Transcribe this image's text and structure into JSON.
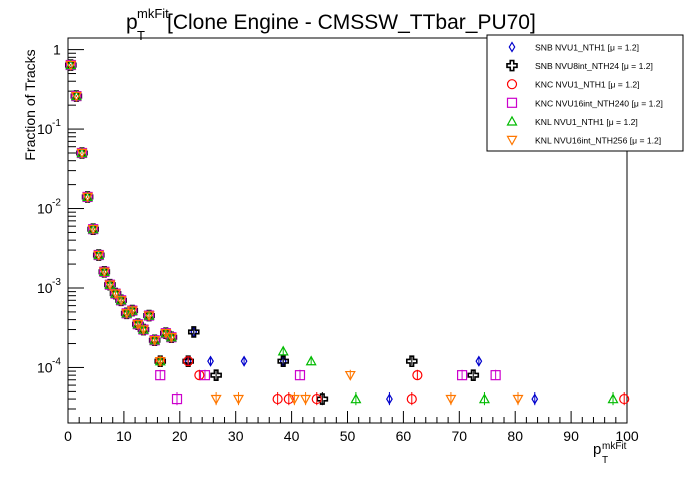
{
  "chart_data": {
    "type": "scatter",
    "title": {
      "main": "p",
      "main_sup": "mkFit",
      "main_sub": "T",
      "rest": " [Clone Engine - CMSSW_TTbar_PU70]"
    },
    "xlabel": {
      "main": "p",
      "sup": "mkFit",
      "sub": "T"
    },
    "ylabel": "Fraction of Tracks",
    "x_scale": "linear",
    "y_scale": "log",
    "xlim": [
      0,
      100
    ],
    "ylim": [
      2e-05,
      1.4
    ],
    "x_ticks": [
      {
        "v": 0,
        "label": "0"
      },
      {
        "v": 10,
        "label": "10"
      },
      {
        "v": 20,
        "label": "20"
      },
      {
        "v": 30,
        "label": "30"
      },
      {
        "v": 40,
        "label": "40"
      },
      {
        "v": 50,
        "label": "50"
      },
      {
        "v": 60,
        "label": "60"
      },
      {
        "v": 70,
        "label": "70"
      },
      {
        "v": 80,
        "label": "80"
      },
      {
        "v": 90,
        "label": "90"
      },
      {
        "v": 100,
        "label": "100"
      }
    ],
    "y_ticks": [
      {
        "v": 0.0001,
        "base": "10",
        "exp": "-4"
      },
      {
        "v": 0.001,
        "base": "10",
        "exp": "-3"
      },
      {
        "v": 0.01,
        "base": "10",
        "exp": "-2"
      },
      {
        "v": 0.1,
        "base": "10",
        "exp": "-1"
      },
      {
        "v": 1,
        "base": "1",
        "exp": ""
      }
    ],
    "grid": false,
    "legend_position": "top-right",
    "series": [
      {
        "name": "SNB NVU1_NTH1 [μ = 1.2]",
        "marker": "diamond",
        "color": "#0000cc",
        "points": [
          [
            0.5,
            0.64
          ],
          [
            1.5,
            0.26
          ],
          [
            2.5,
            0.05
          ],
          [
            3.5,
            0.014
          ],
          [
            4.5,
            0.0055
          ],
          [
            5.5,
            0.0026
          ],
          [
            6.5,
            0.0016
          ],
          [
            7.5,
            0.0011
          ],
          [
            8.5,
            0.00085
          ],
          [
            9.5,
            0.0007
          ],
          [
            10.5,
            0.00048
          ],
          [
            11.5,
            0.00052
          ],
          [
            12.5,
            0.00035
          ],
          [
            13.5,
            0.0003
          ],
          [
            14.5,
            0.00045
          ],
          [
            15.5,
            0.00022
          ],
          [
            16.5,
            0.00012
          ],
          [
            17.5,
            0.00027
          ],
          [
            18.5,
            0.00024
          ],
          [
            21.5,
            0.00012
          ],
          [
            22.5,
            0.00028
          ],
          [
            25.5,
            0.00012
          ],
          [
            31.5,
            0.00012
          ],
          [
            38.5,
            0.00012
          ],
          [
            57.5,
            4e-05
          ],
          [
            73.5,
            0.00012
          ],
          [
            83.5,
            4e-05
          ]
        ]
      },
      {
        "name": "SNB NVU8int_NTH24 [μ = 1.2]",
        "marker": "cross",
        "color": "#000000",
        "points": [
          [
            0.5,
            0.64
          ],
          [
            1.5,
            0.26
          ],
          [
            2.5,
            0.05
          ],
          [
            3.5,
            0.014
          ],
          [
            4.5,
            0.0055
          ],
          [
            5.5,
            0.0026
          ],
          [
            6.5,
            0.0016
          ],
          [
            7.5,
            0.0011
          ],
          [
            8.5,
            0.00085
          ],
          [
            9.5,
            0.0007
          ],
          [
            10.5,
            0.00048
          ],
          [
            11.5,
            0.00052
          ],
          [
            12.5,
            0.00035
          ],
          [
            13.5,
            0.0003
          ],
          [
            14.5,
            0.00045
          ],
          [
            15.5,
            0.00022
          ],
          [
            16.5,
            0.00012
          ],
          [
            17.5,
            0.00027
          ],
          [
            18.5,
            0.00024
          ],
          [
            21.5,
            0.00012
          ],
          [
            22.5,
            0.00028
          ],
          [
            26.5,
            8e-05
          ],
          [
            38.5,
            0.00012
          ],
          [
            45.5,
            4e-05
          ],
          [
            61.5,
            0.00012
          ],
          [
            72.5,
            8e-05
          ]
        ]
      },
      {
        "name": "KNC NVU1_NTH1 [μ = 1.2]",
        "marker": "circle",
        "color": "#ff0000",
        "points": [
          [
            0.5,
            0.64
          ],
          [
            1.5,
            0.26
          ],
          [
            2.5,
            0.05
          ],
          [
            3.5,
            0.014
          ],
          [
            4.5,
            0.0055
          ],
          [
            5.5,
            0.0026
          ],
          [
            6.5,
            0.0016
          ],
          [
            7.5,
            0.0011
          ],
          [
            8.5,
            0.00085
          ],
          [
            9.5,
            0.0007
          ],
          [
            10.5,
            0.00048
          ],
          [
            11.5,
            0.00052
          ],
          [
            12.5,
            0.00035
          ],
          [
            13.5,
            0.0003
          ],
          [
            14.5,
            0.00045
          ],
          [
            15.5,
            0.00022
          ],
          [
            16.5,
            0.00012
          ],
          [
            17.5,
            0.00027
          ],
          [
            18.5,
            0.00024
          ],
          [
            21.5,
            0.00012
          ],
          [
            23.5,
            8e-05
          ],
          [
            37.5,
            4e-05
          ],
          [
            39.5,
            4e-05
          ],
          [
            44.5,
            4e-05
          ],
          [
            61.5,
            4e-05
          ],
          [
            62.5,
            8e-05
          ],
          [
            99.5,
            4e-05
          ]
        ]
      },
      {
        "name": "KNC NVU16int_NTH240 [μ = 1.2]",
        "marker": "square",
        "color": "#cc00cc",
        "points": [
          [
            0.5,
            0.64
          ],
          [
            1.5,
            0.26
          ],
          [
            2.5,
            0.05
          ],
          [
            3.5,
            0.014
          ],
          [
            4.5,
            0.0055
          ],
          [
            5.5,
            0.0026
          ],
          [
            6.5,
            0.0016
          ],
          [
            7.5,
            0.0011
          ],
          [
            8.5,
            0.00085
          ],
          [
            9.5,
            0.0007
          ],
          [
            10.5,
            0.00048
          ],
          [
            11.5,
            0.00052
          ],
          [
            12.5,
            0.00035
          ],
          [
            13.5,
            0.0003
          ],
          [
            14.5,
            0.00045
          ],
          [
            15.5,
            0.00022
          ],
          [
            16.5,
            8e-05
          ],
          [
            17.5,
            0.00027
          ],
          [
            18.5,
            0.00024
          ],
          [
            19.5,
            4e-05
          ],
          [
            24.5,
            8e-05
          ],
          [
            41.5,
            8e-05
          ],
          [
            70.5,
            8e-05
          ],
          [
            76.5,
            8e-05
          ]
        ]
      },
      {
        "name": "KNL NVU1_NTH1 [μ = 1.2]",
        "marker": "triangle",
        "color": "#00bb00",
        "points": [
          [
            0.5,
            0.64
          ],
          [
            1.5,
            0.26
          ],
          [
            2.5,
            0.05
          ],
          [
            3.5,
            0.014
          ],
          [
            4.5,
            0.0055
          ],
          [
            5.5,
            0.0026
          ],
          [
            6.5,
            0.0016
          ],
          [
            7.5,
            0.0011
          ],
          [
            8.5,
            0.00085
          ],
          [
            9.5,
            0.0007
          ],
          [
            10.5,
            0.00048
          ],
          [
            11.5,
            0.00052
          ],
          [
            12.5,
            0.00035
          ],
          [
            13.5,
            0.0003
          ],
          [
            14.5,
            0.00045
          ],
          [
            15.5,
            0.00022
          ],
          [
            16.5,
            0.00012
          ],
          [
            17.5,
            0.00027
          ],
          [
            18.5,
            0.00024
          ],
          [
            38.5,
            0.00016
          ],
          [
            43.5,
            0.00012
          ],
          [
            51.5,
            4e-05
          ],
          [
            74.5,
            4e-05
          ],
          [
            97.5,
            4e-05
          ]
        ]
      },
      {
        "name": "KNL NVU16int_NTH256 [μ = 1.2]",
        "marker": "triangle-down",
        "color": "#ff7700",
        "points": [
          [
            0.5,
            0.64
          ],
          [
            1.5,
            0.26
          ],
          [
            2.5,
            0.05
          ],
          [
            3.5,
            0.014
          ],
          [
            4.5,
            0.0055
          ],
          [
            5.5,
            0.0026
          ],
          [
            6.5,
            0.0016
          ],
          [
            7.5,
            0.0011
          ],
          [
            8.5,
            0.00085
          ],
          [
            9.5,
            0.0007
          ],
          [
            10.5,
            0.00048
          ],
          [
            11.5,
            0.00052
          ],
          [
            12.5,
            0.00035
          ],
          [
            13.5,
            0.0003
          ],
          [
            14.5,
            0.00045
          ],
          [
            15.5,
            0.00022
          ],
          [
            16.5,
            0.00012
          ],
          [
            17.5,
            0.00027
          ],
          [
            18.5,
            0.00024
          ],
          [
            26.5,
            4e-05
          ],
          [
            30.5,
            4e-05
          ],
          [
            40.5,
            4e-05
          ],
          [
            42.5,
            4e-05
          ],
          [
            50.5,
            8e-05
          ],
          [
            68.5,
            4e-05
          ],
          [
            80.5,
            4e-05
          ]
        ]
      }
    ]
  }
}
